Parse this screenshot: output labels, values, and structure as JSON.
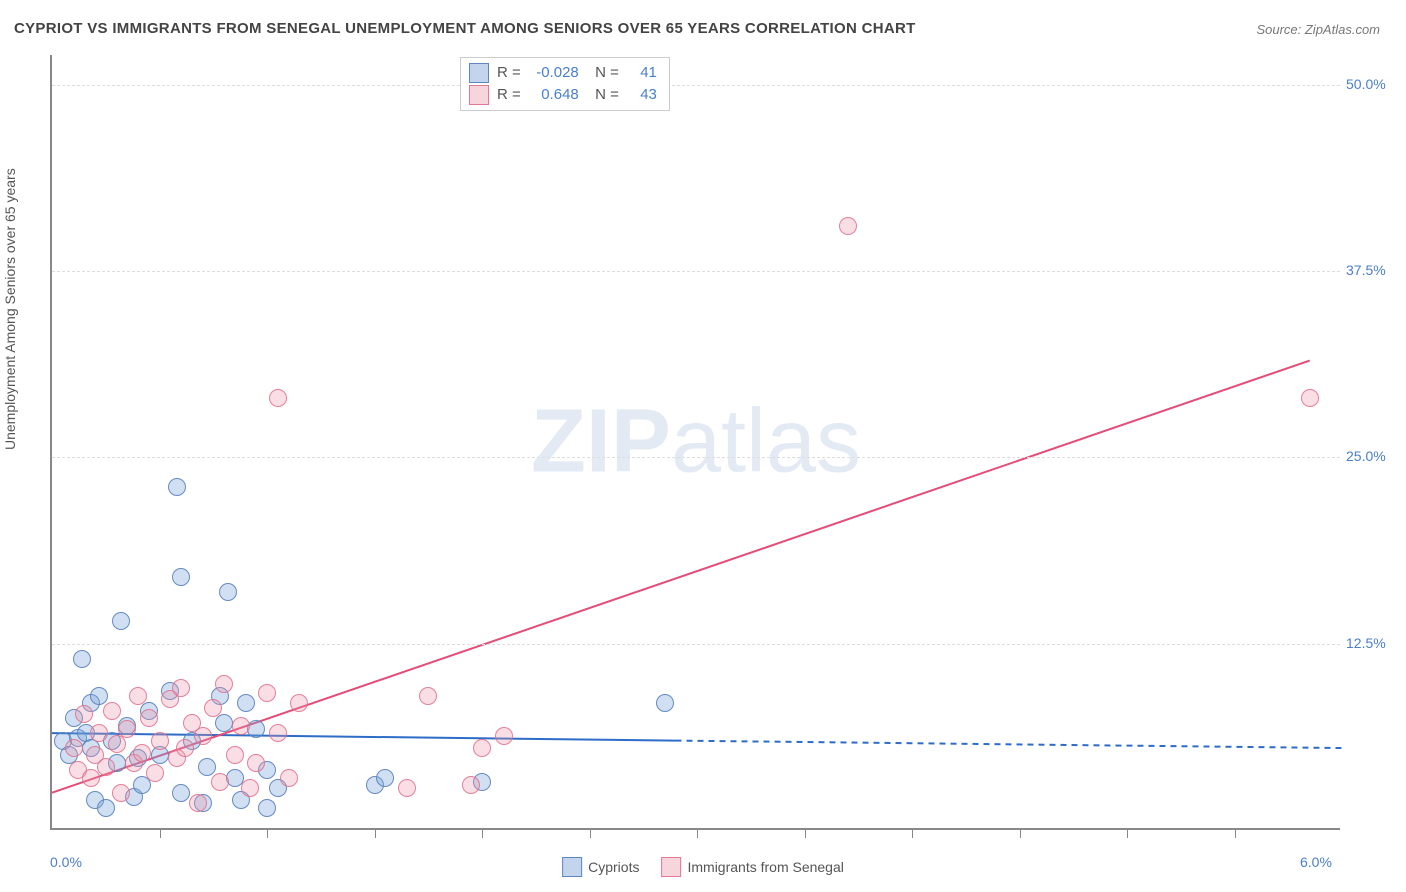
{
  "title": "CYPRIOT VS IMMIGRANTS FROM SENEGAL UNEMPLOYMENT AMONG SENIORS OVER 65 YEARS CORRELATION CHART",
  "source": "Source: ZipAtlas.com",
  "ylabel": "Unemployment Among Seniors over 65 years",
  "watermark_parts": {
    "zip": "ZIP",
    "atlas": "atlas"
  },
  "chart": {
    "type": "scatter",
    "background_color": "#ffffff",
    "grid_color": "#dddddd",
    "axis_color": "#888888",
    "tick_color": "#4a7fc9",
    "xlim": [
      0.0,
      6.0
    ],
    "ylim": [
      0.0,
      52.0
    ],
    "xticks": [
      0.0,
      6.0
    ],
    "xtick_labels": [
      "0.0%",
      "6.0%"
    ],
    "yticks": [
      12.5,
      25.0,
      37.5,
      50.0
    ],
    "ytick_labels": [
      "12.5%",
      "25.0%",
      "37.5%",
      "50.0%"
    ],
    "x_minor_ticks": [
      0.5,
      1.0,
      1.5,
      2.0,
      2.5,
      3.0,
      3.5,
      4.0,
      4.5,
      5.0,
      5.5
    ],
    "marker_radius": 9,
    "series": [
      {
        "name": "Cypriots",
        "color_fill": "rgba(119,162,216,0.35)",
        "color_stroke": "rgba(90,130,190,0.9)",
        "R": "-0.028",
        "N": "41",
        "trend": {
          "x1": 0.0,
          "y1": 6.5,
          "x2": 2.9,
          "y2": 6.0,
          "x2_ext": 6.0,
          "y2_ext": 5.5,
          "color": "#2d6cc7",
          "width": 2
        },
        "points": [
          [
            0.05,
            6.0
          ],
          [
            0.08,
            5.0
          ],
          [
            0.1,
            7.5
          ],
          [
            0.12,
            6.2
          ],
          [
            0.14,
            11.5
          ],
          [
            0.16,
            6.5
          ],
          [
            0.18,
            8.5
          ],
          [
            0.18,
            5.5
          ],
          [
            0.2,
            2.0
          ],
          [
            0.22,
            9.0
          ],
          [
            0.25,
            1.5
          ],
          [
            0.28,
            6.0
          ],
          [
            0.3,
            4.5
          ],
          [
            0.32,
            14.0
          ],
          [
            0.35,
            7.0
          ],
          [
            0.38,
            2.2
          ],
          [
            0.4,
            4.8
          ],
          [
            0.45,
            8.0
          ],
          [
            0.5,
            5.0
          ],
          [
            0.55,
            9.3
          ],
          [
            0.58,
            23.0
          ],
          [
            0.6,
            2.5
          ],
          [
            0.6,
            17.0
          ],
          [
            0.65,
            6.0
          ],
          [
            0.7,
            1.8
          ],
          [
            0.72,
            4.2
          ],
          [
            0.78,
            9.0
          ],
          [
            0.8,
            7.2
          ],
          [
            0.82,
            16.0
          ],
          [
            0.85,
            3.5
          ],
          [
            0.88,
            2.0
          ],
          [
            0.9,
            8.5
          ],
          [
            0.95,
            6.8
          ],
          [
            1.0,
            1.5
          ],
          [
            1.0,
            4.0
          ],
          [
            1.05,
            2.8
          ],
          [
            1.5,
            3.0
          ],
          [
            1.55,
            3.5
          ],
          [
            2.0,
            3.2
          ],
          [
            2.85,
            8.5
          ],
          [
            0.42,
            3.0
          ]
        ]
      },
      {
        "name": "Immigrants from Senegal",
        "color_fill": "rgba(236,150,170,0.3)",
        "color_stroke": "rgba(224,110,140,0.85)",
        "R": "0.648",
        "N": "43",
        "trend": {
          "x1": 0.0,
          "y1": 2.5,
          "x2": 5.85,
          "y2": 31.5,
          "color": "#e54c77",
          "width": 2
        },
        "points": [
          [
            0.1,
            5.5
          ],
          [
            0.12,
            4.0
          ],
          [
            0.15,
            7.8
          ],
          [
            0.18,
            3.5
          ],
          [
            0.2,
            5.0
          ],
          [
            0.22,
            6.5
          ],
          [
            0.25,
            4.2
          ],
          [
            0.28,
            8.0
          ],
          [
            0.3,
            5.8
          ],
          [
            0.32,
            2.5
          ],
          [
            0.35,
            6.8
          ],
          [
            0.38,
            4.5
          ],
          [
            0.4,
            9.0
          ],
          [
            0.42,
            5.2
          ],
          [
            0.45,
            7.5
          ],
          [
            0.48,
            3.8
          ],
          [
            0.5,
            6.0
          ],
          [
            0.55,
            8.8
          ],
          [
            0.58,
            4.8
          ],
          [
            0.6,
            9.5
          ],
          [
            0.62,
            5.5
          ],
          [
            0.65,
            7.2
          ],
          [
            0.68,
            1.8
          ],
          [
            0.7,
            6.3
          ],
          [
            0.75,
            8.2
          ],
          [
            0.78,
            3.2
          ],
          [
            0.8,
            9.8
          ],
          [
            0.85,
            5.0
          ],
          [
            0.88,
            7.0
          ],
          [
            0.92,
            2.8
          ],
          [
            0.95,
            4.5
          ],
          [
            1.0,
            9.2
          ],
          [
            1.05,
            6.5
          ],
          [
            1.1,
            3.5
          ],
          [
            1.15,
            8.5
          ],
          [
            1.05,
            29.0
          ],
          [
            1.65,
            2.8
          ],
          [
            1.75,
            9.0
          ],
          [
            1.95,
            3.0
          ],
          [
            2.0,
            5.5
          ],
          [
            2.1,
            6.3
          ],
          [
            3.7,
            40.5
          ],
          [
            5.85,
            29.0
          ]
        ]
      }
    ]
  },
  "bottom_legend": [
    {
      "swatch": "blue",
      "label": "Cypriots"
    },
    {
      "swatch": "pink",
      "label": "Immigrants from Senegal"
    }
  ]
}
